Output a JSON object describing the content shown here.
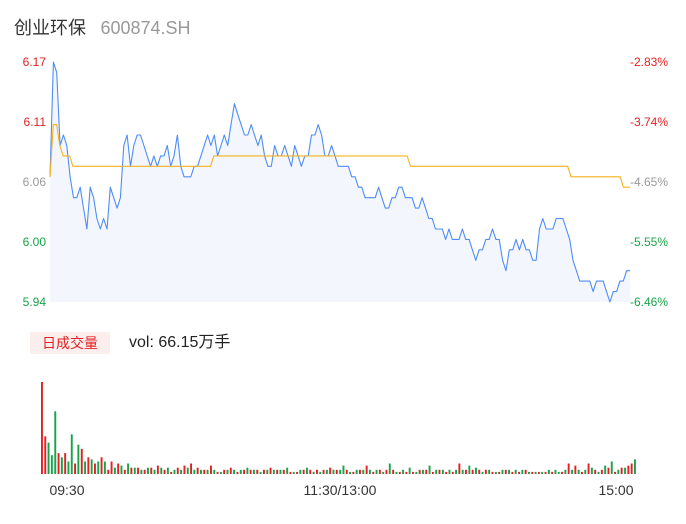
{
  "header": {
    "stock_name": "创业环保",
    "stock_code": "600874.SH"
  },
  "volume_panel": {
    "tag_label": "日成交量",
    "readout": "vol: 66.15万手"
  },
  "colors": {
    "price_line": "#4f8df5",
    "avg_line": "#f5b21d",
    "up": "#e22222",
    "down": "#1aa34a",
    "price_fill": "#f3f6fd",
    "axis_neutral": "#999999"
  },
  "chart_data": [
    {
      "type": "line",
      "title": "",
      "xlabel": "",
      "ylabel": "",
      "x_ticks": [
        "09:30",
        "11:30/13:00",
        "15:00"
      ],
      "y_ticks_left": [
        "6.17",
        "6.11",
        "6.06",
        "6.00",
        "5.94"
      ],
      "y_ticks_right": [
        "-2.83%",
        "-3.74%",
        "-4.65%",
        "-5.55%",
        "-6.46%"
      ],
      "ylim": [
        5.94,
        6.17
      ],
      "grid": false,
      "series": [
        {
          "values": [
            6.06,
            6.17,
            6.16,
            6.09,
            6.1,
            6.09,
            6.06,
            6.04,
            6.04,
            6.05,
            6.03,
            6.01,
            6.05,
            6.04,
            6.02,
            6.01,
            6.02,
            6.01,
            6.05,
            6.04,
            6.03,
            6.04,
            6.09,
            6.1,
            6.07,
            6.09,
            6.1,
            6.1,
            6.09,
            6.08,
            6.07,
            6.08,
            6.07,
            6.08,
            6.08,
            6.09,
            6.07,
            6.08,
            6.1,
            6.07,
            6.06,
            6.06,
            6.06,
            6.07,
            6.07,
            6.08,
            6.09,
            6.1,
            6.09,
            6.1,
            6.08,
            6.09,
            6.1,
            6.09,
            6.11,
            6.13,
            6.12,
            6.11,
            6.1,
            6.1,
            6.11,
            6.1,
            6.09,
            6.1,
            6.08,
            6.07,
            6.07,
            6.09,
            6.08,
            6.08,
            6.09,
            6.08,
            6.07,
            6.09,
            6.08,
            6.07,
            6.08,
            6.08,
            6.1,
            6.1,
            6.11,
            6.1,
            6.08,
            6.08,
            6.09,
            6.08,
            6.07,
            6.07,
            6.07,
            6.07,
            6.06,
            6.06,
            6.05,
            6.05,
            6.04,
            6.04,
            6.04,
            6.04,
            6.05,
            6.04,
            6.03,
            6.03,
            6.04,
            6.04,
            6.05,
            6.05,
            6.04,
            6.04,
            6.04,
            6.03,
            6.03,
            6.04,
            6.03,
            6.02,
            6.02,
            6.01,
            6.01,
            6.01,
            6.0,
            6.01,
            6.0,
            6.0,
            6.0,
            6.01,
            6.0,
            6.0,
            5.99,
            5.98,
            5.99,
            5.99,
            6.0,
            6.0,
            6.01,
            6.0,
            6.0,
            5.98,
            5.97,
            5.99,
            5.99,
            6.0,
            5.99,
            6.0,
            5.99,
            5.99,
            5.98,
            5.98,
            6.01,
            6.02,
            6.01,
            6.01,
            6.01,
            6.02,
            6.02,
            6.02,
            6.01,
            6.0,
            5.98,
            5.97,
            5.96,
            5.96,
            5.96,
            5.96,
            5.95,
            5.96,
            5.96,
            5.96,
            5.95,
            5.94,
            5.95,
            5.95,
            5.96,
            5.96,
            5.97,
            5.97
          ]
        },
        {
          "values": [
            6.06,
            6.11,
            6.11,
            6.09,
            6.08,
            6.08,
            6.08,
            6.07,
            6.07,
            6.07,
            6.07,
            6.07,
            6.07,
            6.07,
            6.07,
            6.07,
            6.07,
            6.07,
            6.07,
            6.07,
            6.07,
            6.07,
            6.07,
            6.07,
            6.07,
            6.07,
            6.07,
            6.07,
            6.07,
            6.07,
            6.07,
            6.07,
            6.07,
            6.07,
            6.07,
            6.07,
            6.07,
            6.07,
            6.07,
            6.07,
            6.07,
            6.07,
            6.07,
            6.07,
            6.07,
            6.07,
            6.07,
            6.07,
            6.07,
            6.07,
            6.08,
            6.08,
            6.08,
            6.08,
            6.08,
            6.08,
            6.08,
            6.08,
            6.08,
            6.08,
            6.08,
            6.08,
            6.08,
            6.08,
            6.08,
            6.08,
            6.08,
            6.08,
            6.08,
            6.08,
            6.08,
            6.08,
            6.08,
            6.08,
            6.08,
            6.08,
            6.08,
            6.08,
            6.08,
            6.08,
            6.08,
            6.08,
            6.08,
            6.08,
            6.08,
            6.08,
            6.08,
            6.08,
            6.08,
            6.08,
            6.08,
            6.08,
            6.08,
            6.08,
            6.08,
            6.08,
            6.08,
            6.08,
            6.08,
            6.08,
            6.08,
            6.08,
            6.08,
            6.08,
            6.08,
            6.08,
            6.08,
            6.08,
            6.08,
            6.08,
            6.07,
            6.07,
            6.07,
            6.07,
            6.07,
            6.07,
            6.07,
            6.07,
            6.07,
            6.07,
            6.07,
            6.07,
            6.07,
            6.07,
            6.07,
            6.07,
            6.07,
            6.07,
            6.07,
            6.07,
            6.07,
            6.07,
            6.07,
            6.07,
            6.07,
            6.07,
            6.07,
            6.07,
            6.07,
            6.07,
            6.07,
            6.07,
            6.07,
            6.07,
            6.07,
            6.07,
            6.07,
            6.07,
            6.07,
            6.07,
            6.07,
            6.07,
            6.07,
            6.07,
            6.07,
            6.07,
            6.07,
            6.07,
            6.07,
            6.06,
            6.06,
            6.06,
            6.06,
            6.06,
            6.06,
            6.06,
            6.06,
            6.06,
            6.06,
            6.06,
            6.06,
            6.06,
            6.06,
            6.06,
            6.06,
            6.05,
            6.05,
            6.05
          ]
        }
      ]
    },
    {
      "type": "bar",
      "title": "",
      "xlabel": "",
      "ylabel": "",
      "values": [
        88,
        36,
        30,
        18,
        60,
        20,
        16,
        20,
        12,
        38,
        10,
        28,
        24,
        12,
        16,
        14,
        10,
        12,
        16,
        12,
        4,
        12,
        6,
        10,
        8,
        4,
        10,
        6,
        6,
        6,
        4,
        4,
        6,
        6,
        4,
        8,
        6,
        4,
        6,
        2,
        4,
        6,
        4,
        8,
        6,
        10,
        4,
        6,
        4,
        4,
        4,
        8,
        4,
        2,
        2,
        4,
        4,
        6,
        4,
        2,
        4,
        4,
        6,
        4,
        4,
        4,
        2,
        4,
        4,
        6,
        4,
        4,
        4,
        4,
        6,
        2,
        2,
        2,
        4,
        4,
        6,
        4,
        2,
        4,
        2,
        4,
        4,
        6,
        4,
        4,
        4,
        8,
        4,
        2,
        2,
        4,
        4,
        4,
        8,
        4,
        2,
        4,
        4,
        2,
        4,
        10,
        4,
        2,
        2,
        4,
        2,
        6,
        2,
        2,
        4,
        4,
        4,
        8,
        2,
        4,
        4,
        4,
        2,
        4,
        2,
        4,
        10,
        4,
        4,
        8,
        4,
        6,
        4,
        2,
        4,
        4,
        2,
        2,
        2,
        4,
        4,
        4,
        2,
        4,
        2,
        4,
        4,
        2,
        2,
        2,
        2,
        2,
        2,
        4,
        2,
        4,
        2,
        2,
        4,
        10,
        4,
        8,
        4,
        2,
        4,
        10,
        6,
        4,
        2,
        4,
        8,
        6,
        12,
        2,
        4,
        6,
        6,
        8,
        10,
        14
      ],
      "directions": [
        "u",
        "u",
        "d",
        "d",
        "d",
        "u",
        "d",
        "u",
        "d",
        "d",
        "u",
        "d",
        "u",
        "d",
        "u",
        "d",
        "u",
        "d",
        "u",
        "d",
        "u",
        "u",
        "d",
        "u",
        "d",
        "u",
        "d",
        "u",
        "d",
        "u",
        "d",
        "u",
        "d",
        "u",
        "d",
        "u",
        "d",
        "u",
        "d",
        "u",
        "d",
        "u",
        "d",
        "u",
        "d",
        "u",
        "d",
        "u",
        "d",
        "u",
        "d",
        "u",
        "d",
        "u",
        "d",
        "u",
        "d",
        "u",
        "d",
        "u",
        "d",
        "u",
        "d",
        "u",
        "d",
        "u",
        "d",
        "u",
        "d",
        "u",
        "d",
        "u",
        "d",
        "u",
        "d",
        "u",
        "d",
        "u",
        "d",
        "u",
        "d",
        "u",
        "d",
        "u",
        "d",
        "u",
        "d",
        "u",
        "d",
        "u",
        "d",
        "d",
        "u",
        "d",
        "u",
        "d",
        "u",
        "d",
        "u",
        "d",
        "u",
        "d",
        "u",
        "d",
        "u",
        "d",
        "u",
        "d",
        "u",
        "d",
        "u",
        "d",
        "u",
        "d",
        "u",
        "d",
        "u",
        "d",
        "u",
        "d",
        "u",
        "d",
        "u",
        "d",
        "u",
        "d",
        "u",
        "d",
        "u",
        "d",
        "u",
        "d",
        "u",
        "d",
        "u",
        "d",
        "u",
        "d",
        "u",
        "d",
        "u",
        "d",
        "u",
        "d",
        "u",
        "d",
        "u",
        "d",
        "u",
        "d",
        "u",
        "d",
        "u",
        "d",
        "u",
        "d",
        "d",
        "u",
        "d",
        "u",
        "d",
        "u",
        "d",
        "u",
        "d",
        "u",
        "d",
        "u",
        "d",
        "u",
        "d",
        "u",
        "d",
        "u",
        "d",
        "u",
        "d",
        "u",
        "u"
      ]
    }
  ]
}
